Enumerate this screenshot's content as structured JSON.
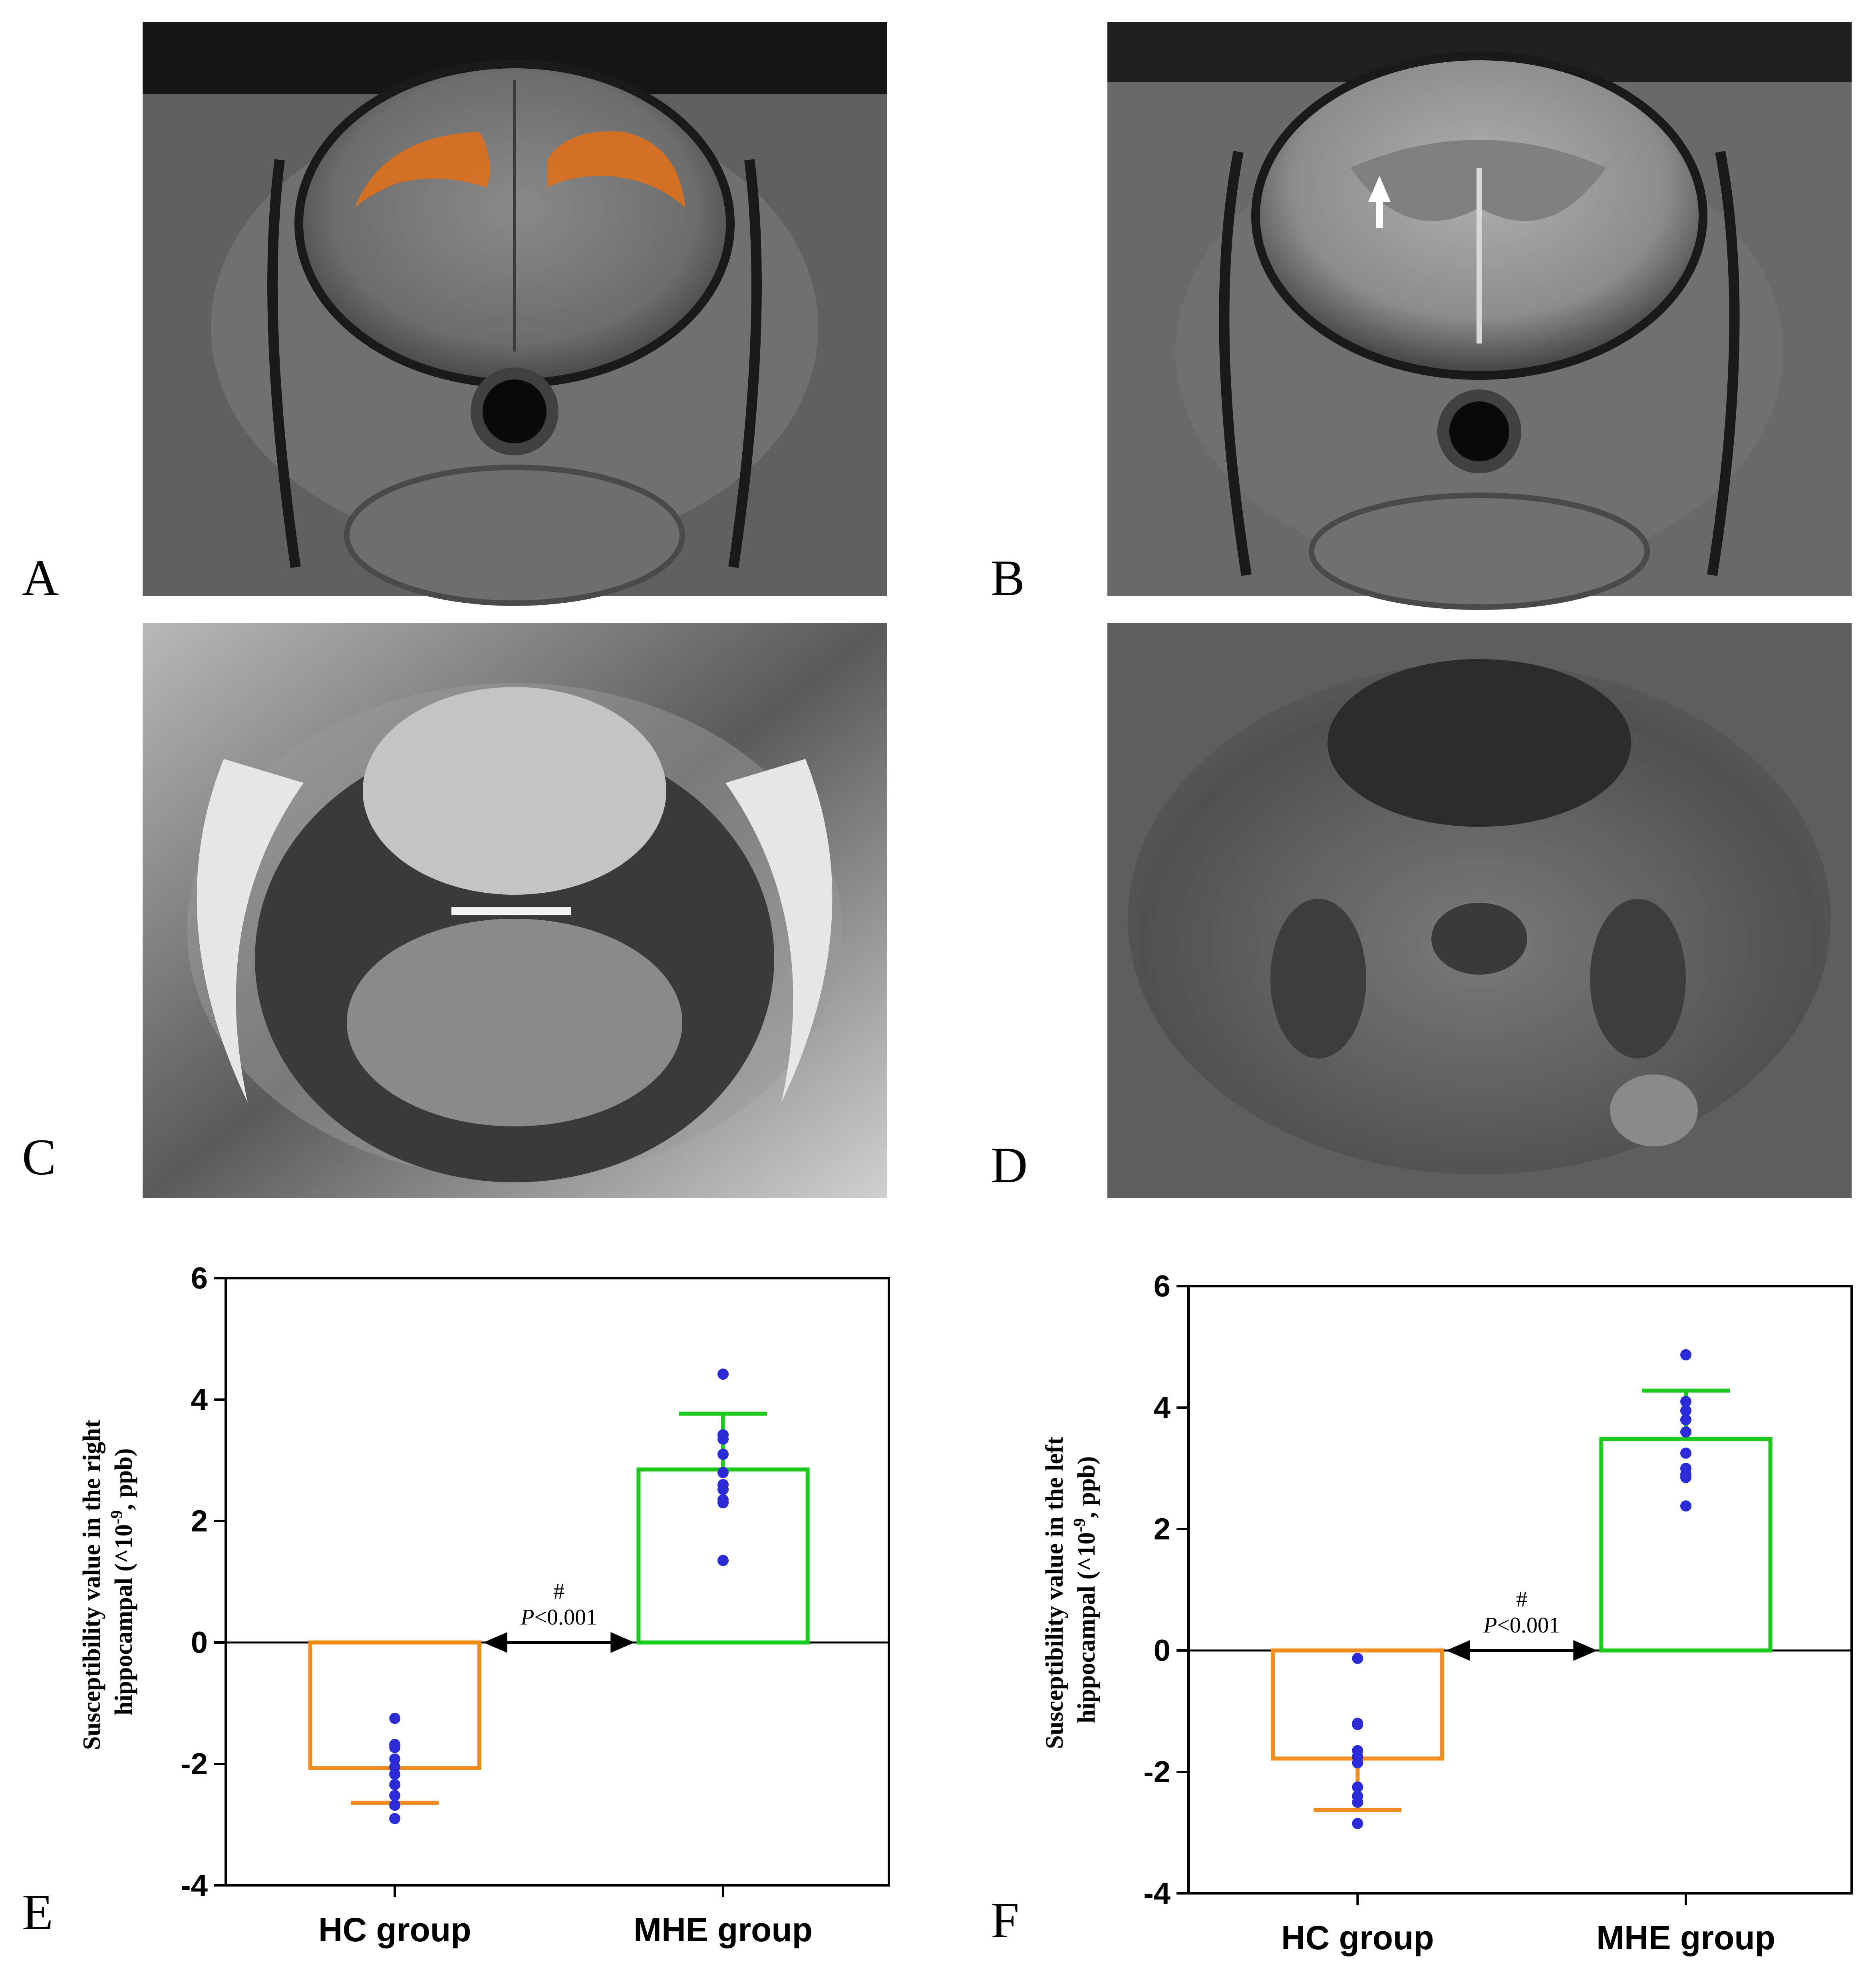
{
  "panels": [
    {
      "id": "A",
      "label": "A",
      "image_type": "T1-weighted coronal MRI, rat brain, hippocampus ROIs in orange",
      "roi_color": "#d9701f"
    },
    {
      "id": "B",
      "label": "B",
      "image_type": "T2-weighted coronal MRI, rat brain, white arrow",
      "arrow_color": "#ffffff"
    },
    {
      "id": "C",
      "label": "C",
      "image_type": "phase map, rat brain"
    },
    {
      "id": "D",
      "label": "D",
      "image_type": "quantitative susceptibility map, rat brain"
    },
    {
      "id": "E",
      "label": "E"
    },
    {
      "id": "F",
      "label": "F"
    }
  ],
  "chart_data": [
    {
      "panel": "E",
      "type": "bar",
      "categories": [
        "HC group",
        "MHE group"
      ],
      "ylabel_lines": [
        "Susceptibility value in the right",
        "hippocampal (^10",
        "-9",
        ", ppb)"
      ],
      "ylim": [
        -4,
        6
      ],
      "yticks": [
        6,
        4,
        2,
        0,
        -2,
        -4
      ],
      "ytick_labels": [
        "6",
        "4",
        "2",
        "0",
        "-2",
        "-4"
      ],
      "grid": false,
      "legend": "none",
      "bars": [
        {
          "category": "HC group",
          "mean": -2.07,
          "error": 0.57,
          "color": "#f08c1e",
          "points": [
            -1.25,
            -1.68,
            -1.73,
            -1.92,
            -2.05,
            -2.17,
            -2.34,
            -2.52,
            -2.68,
            -2.9
          ]
        },
        {
          "category": "MHE group",
          "mean": 2.85,
          "error": 0.92,
          "color": "#1ec81e",
          "points": [
            4.42,
            3.42,
            3.35,
            3.1,
            2.8,
            2.6,
            2.52,
            2.35,
            2.3,
            1.35
          ]
        }
      ],
      "point_color": "#2b2bd8",
      "annotation": {
        "symbol": "#",
        "p_label": "P",
        "p_value": "<0.001",
        "y": 0
      }
    },
    {
      "panel": "F",
      "type": "bar",
      "categories": [
        "HC group",
        "MHE group"
      ],
      "ylabel_lines": [
        "Susceptibility value in the left",
        "hippocampal (^10",
        "-9",
        ", ppb)"
      ],
      "ylim": [
        -4,
        6
      ],
      "yticks": [
        6,
        4,
        2,
        0,
        -2,
        -4
      ],
      "ytick_labels": [
        "6",
        "4",
        "2",
        "0",
        "-2",
        "-4"
      ],
      "grid": false,
      "legend": "none",
      "bars": [
        {
          "category": "HC group",
          "mean": -1.78,
          "error": 0.85,
          "color": "#f08c1e",
          "points": [
            -0.13,
            -1.2,
            -1.22,
            -1.65,
            -1.75,
            -1.85,
            -2.25,
            -2.4,
            -2.5,
            -2.85
          ]
        },
        {
          "category": "MHE group",
          "mean": 3.48,
          "error": 0.8,
          "color": "#1ec81e",
          "points": [
            4.87,
            4.1,
            3.95,
            3.8,
            3.6,
            3.25,
            3.0,
            2.9,
            2.85,
            2.38
          ]
        }
      ],
      "point_color": "#2b2bd8",
      "annotation": {
        "symbol": "#",
        "p_label": "P",
        "p_value": "<0.001",
        "y": 0
      }
    }
  ]
}
